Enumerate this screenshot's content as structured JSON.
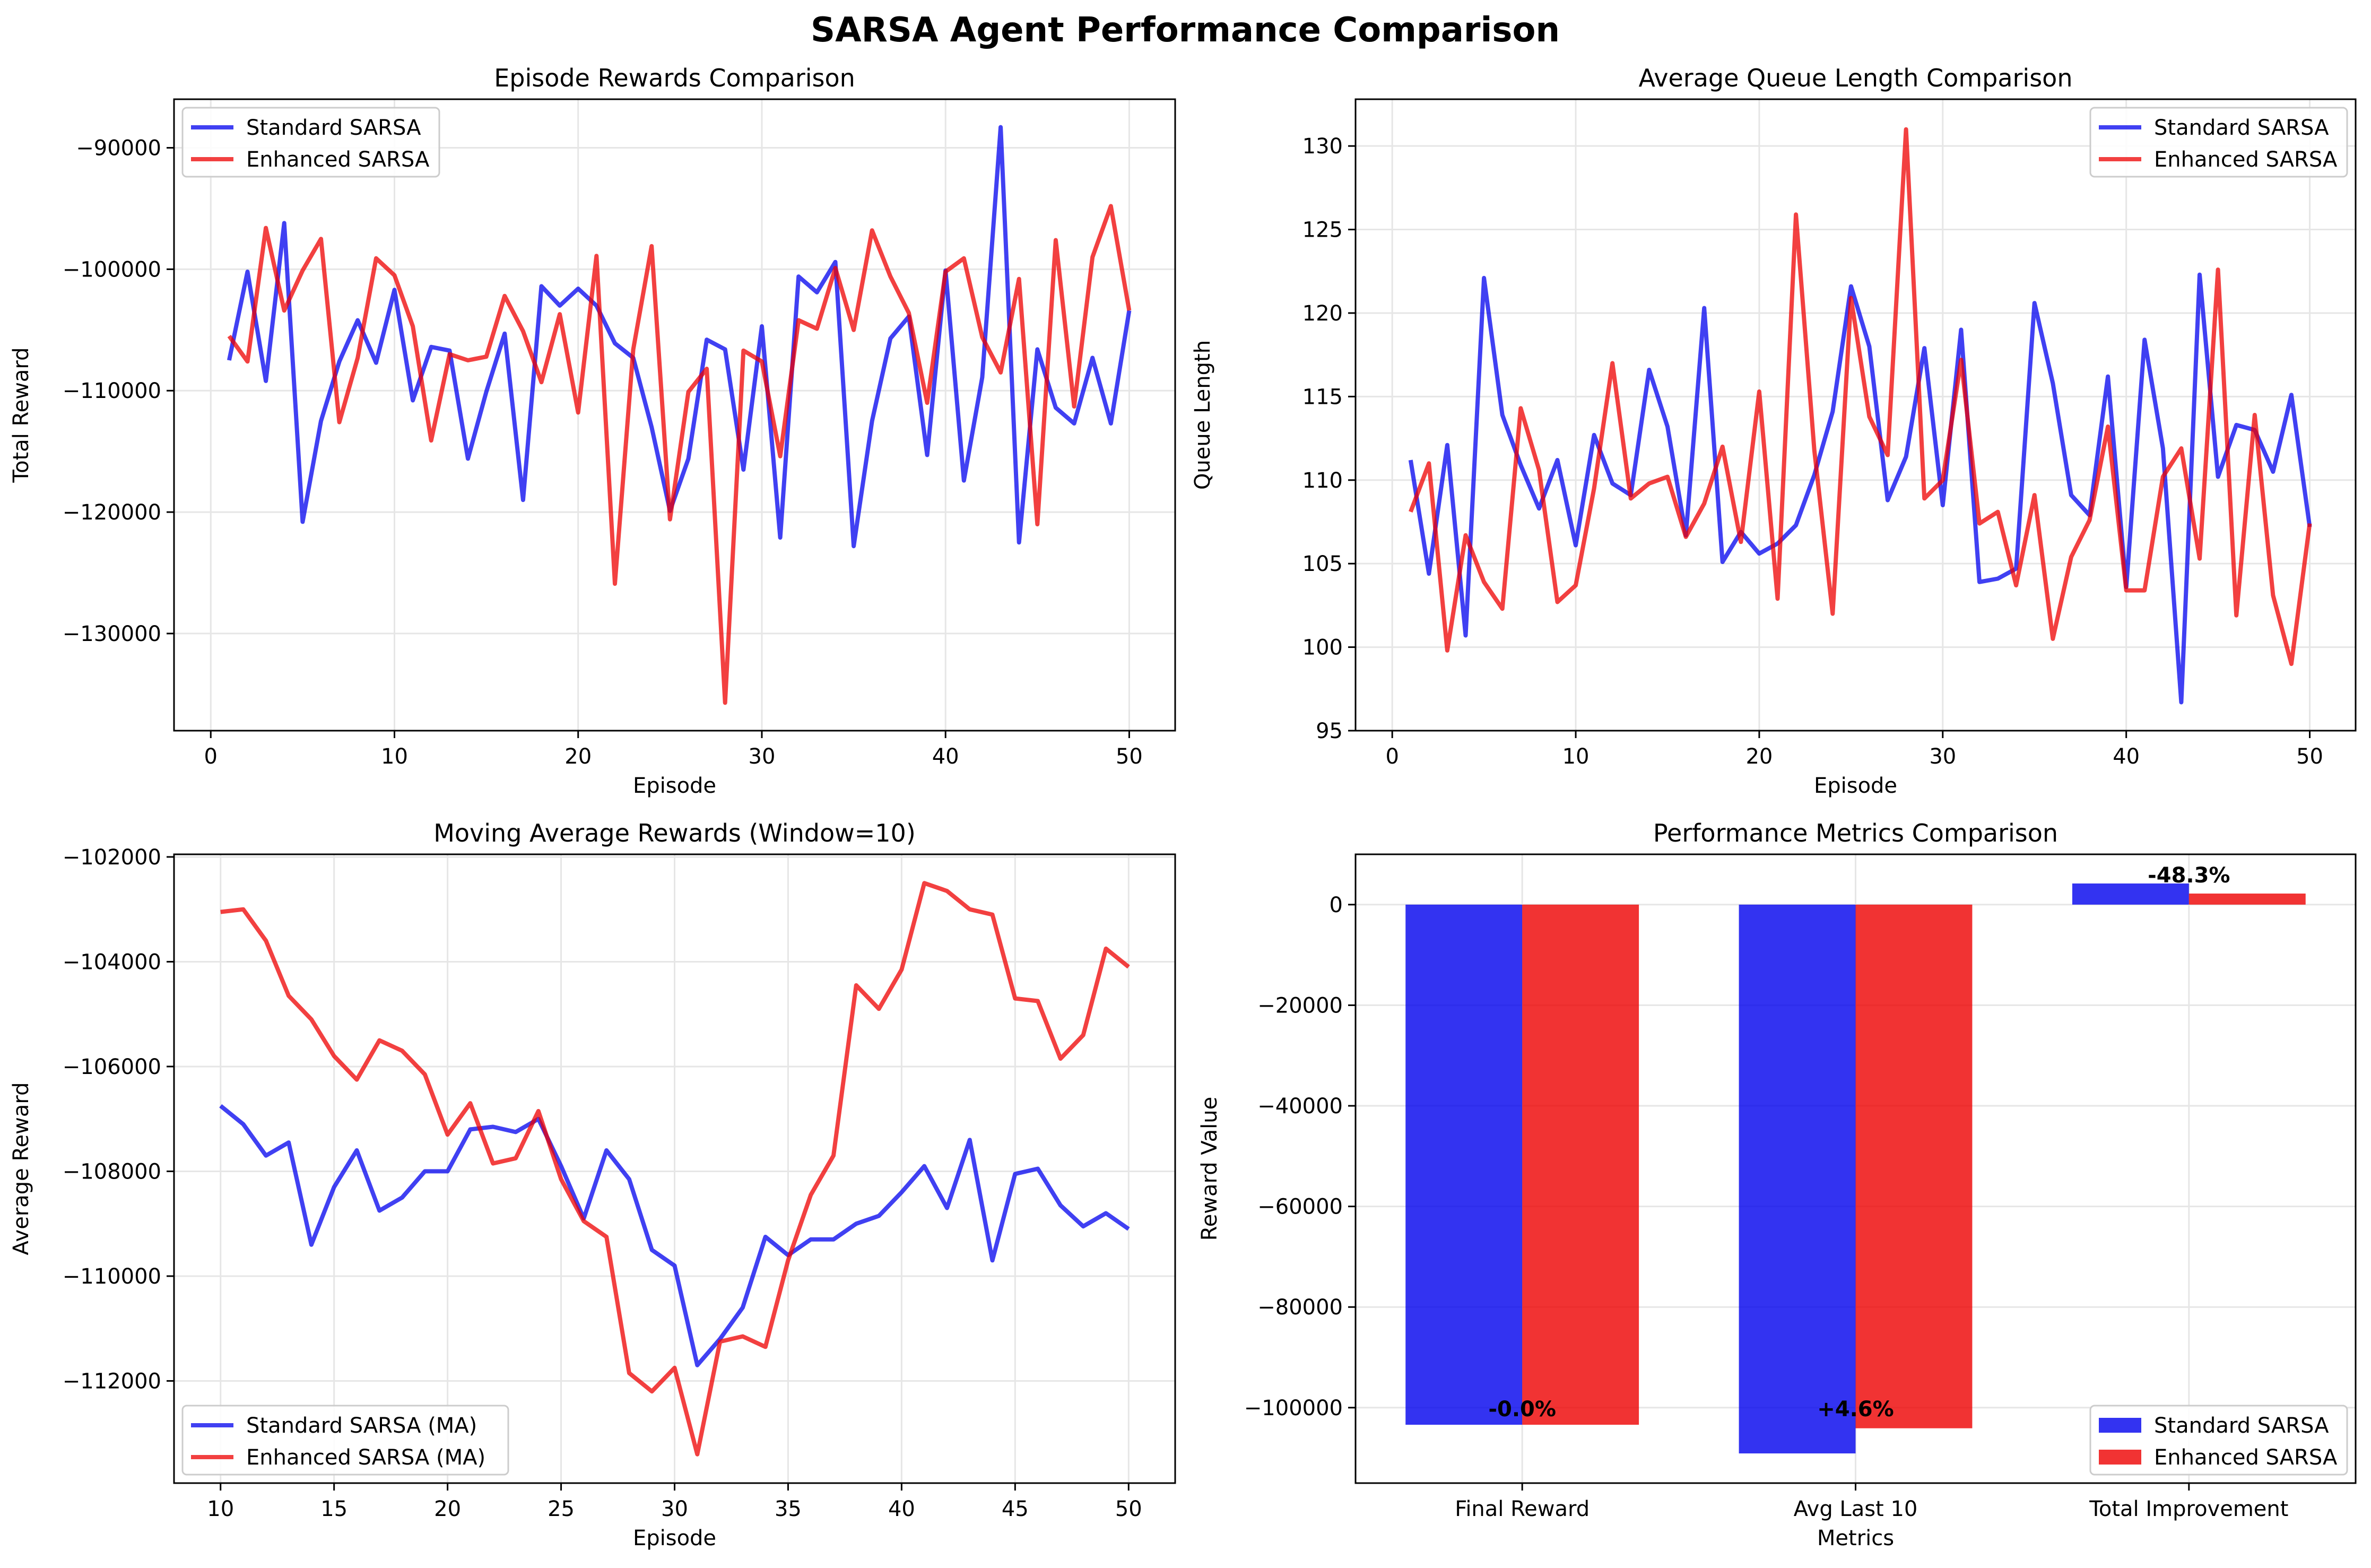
{
  "suptitle": "SARSA Agent Performance Comparison",
  "colors": {
    "standard": "#0000ee",
    "enhanced": "#ee0000",
    "grid": "#e6e6e6"
  },
  "chart_data": [
    {
      "type": "line",
      "title": "Episode Rewards Comparison",
      "xlabel": "Episode",
      "ylabel": "Total Reward",
      "xlim": [
        -2,
        52.5
      ],
      "ylim": [
        -138000,
        -86000
      ],
      "xticks": [
        0,
        10,
        20,
        30,
        40,
        50
      ],
      "yticks": [
        -130000,
        -120000,
        -110000,
        -100000,
        -90000
      ],
      "ytick_labels": [
        "−130000",
        "−120000",
        "−110000",
        "−100000",
        "−90000"
      ],
      "legend": "top-left",
      "x": [
        1,
        2,
        3,
        4,
        5,
        6,
        7,
        8,
        9,
        10,
        11,
        12,
        13,
        14,
        15,
        16,
        17,
        18,
        19,
        20,
        21,
        22,
        23,
        24,
        25,
        26,
        27,
        28,
        29,
        30,
        31,
        32,
        33,
        34,
        35,
        36,
        37,
        38,
        39,
        40,
        41,
        42,
        43,
        44,
        45,
        46,
        47,
        48,
        49,
        50
      ],
      "series": [
        {
          "name": "Standard SARSA",
          "color_key": "standard",
          "values": [
            -107500,
            -100200,
            -109200,
            -96200,
            -120800,
            -112500,
            -107600,
            -104200,
            -107700,
            -101700,
            -110800,
            -106400,
            -106700,
            -115600,
            -110100,
            -105300,
            -119000,
            -101400,
            -103000,
            -101600,
            -103000,
            -106100,
            -107300,
            -113000,
            -119900,
            -115600,
            -105800,
            -106600,
            -116500,
            -104700,
            -122100,
            -100600,
            -101900,
            -99400,
            -122800,
            -112500,
            -105700,
            -103900,
            -115300,
            -100100,
            -117400,
            -108900,
            -88300,
            -122500,
            -106600,
            -111400,
            -112700,
            -107300,
            -112700,
            -103400
          ]
        },
        {
          "name": "Enhanced SARSA",
          "color_key": "enhanced",
          "values": [
            -105500,
            -107600,
            -96600,
            -103400,
            -100100,
            -97500,
            -112600,
            -107300,
            -99100,
            -100500,
            -104700,
            -114100,
            -107000,
            -107500,
            -107200,
            -102200,
            -105100,
            -109300,
            -103700,
            -111800,
            -98900,
            -125900,
            -106600,
            -98100,
            -120600,
            -110100,
            -108200,
            -135700,
            -106700,
            -107600,
            -115400,
            -104200,
            -104900,
            -99900,
            -105000,
            -96800,
            -100600,
            -103600,
            -111000,
            -100200,
            -99100,
            -105600,
            -108500,
            -100800,
            -121000,
            -97600,
            -111300,
            -99000,
            -94800,
            -103400
          ]
        }
      ]
    },
    {
      "type": "line",
      "title": "Average Queue Length Comparison",
      "xlabel": "Episode",
      "ylabel": "Queue Length",
      "xlim": [
        -2,
        52.5
      ],
      "ylim": [
        95,
        132.8
      ],
      "xticks": [
        0,
        10,
        20,
        30,
        40,
        50
      ],
      "yticks": [
        95,
        100,
        105,
        110,
        115,
        120,
        125,
        130
      ],
      "ytick_labels": [
        "95",
        "100",
        "105",
        "110",
        "115",
        "120",
        "125",
        "130"
      ],
      "legend": "top-right",
      "x": [
        1,
        2,
        3,
        4,
        5,
        6,
        7,
        8,
        9,
        10,
        11,
        12,
        13,
        14,
        15,
        16,
        17,
        18,
        19,
        20,
        21,
        22,
        23,
        24,
        25,
        26,
        27,
        28,
        29,
        30,
        31,
        32,
        33,
        34,
        35,
        36,
        37,
        38,
        39,
        40,
        41,
        42,
        43,
        44,
        45,
        46,
        47,
        48,
        49,
        50
      ],
      "series": [
        {
          "name": "Standard SARSA",
          "color_key": "standard",
          "values": [
            111.2,
            104.4,
            112.1,
            100.7,
            122.1,
            113.9,
            110.9,
            108.3,
            111.2,
            106.1,
            112.7,
            109.8,
            109.1,
            116.6,
            113.2,
            106.7,
            120.3,
            105.1,
            106.9,
            105.6,
            106.2,
            107.3,
            110.3,
            114.1,
            121.6,
            118.0,
            108.8,
            111.4,
            117.9,
            108.5,
            119.0,
            103.9,
            104.1,
            104.7,
            120.6,
            115.8,
            109.1,
            107.9,
            116.2,
            103.6,
            118.4,
            111.9,
            96.7,
            122.3,
            110.2,
            113.3,
            113.0,
            110.5,
            115.1,
            107.2
          ]
        },
        {
          "name": "Enhanced SARSA",
          "color_key": "enhanced",
          "values": [
            108.1,
            111.0,
            99.8,
            106.7,
            103.9,
            102.3,
            114.3,
            110.6,
            102.7,
            103.7,
            109.5,
            117.0,
            108.9,
            109.8,
            110.2,
            106.6,
            108.6,
            112.0,
            106.3,
            115.3,
            102.9,
            125.9,
            111.8,
            102.0,
            120.9,
            113.8,
            111.5,
            131.0,
            108.9,
            110.0,
            117.2,
            107.4,
            108.1,
            103.7,
            109.1,
            100.5,
            105.4,
            107.6,
            113.2,
            103.4,
            103.4,
            110.2,
            111.9,
            105.3,
            122.6,
            101.9,
            113.9,
            103.1,
            99.0,
            107.4
          ]
        }
      ]
    },
    {
      "type": "line",
      "title": "Moving Average Rewards (Window=10)",
      "xlabel": "Episode",
      "ylabel": "Average Reward",
      "xlim": [
        7.95,
        52.05
      ],
      "ylim": [
        -113950,
        -101950
      ],
      "xticks": [
        10,
        15,
        20,
        25,
        30,
        35,
        40,
        45,
        50
      ],
      "yticks": [
        -112000,
        -110000,
        -108000,
        -106000,
        -104000,
        -102000
      ],
      "ytick_labels": [
        "−112000",
        "−110000",
        "−108000",
        "−106000",
        "−104000",
        "−102000"
      ],
      "legend": "bottom-left",
      "x": [
        10,
        11,
        12,
        13,
        14,
        15,
        16,
        17,
        18,
        19,
        20,
        21,
        22,
        23,
        24,
        25,
        26,
        27,
        28,
        29,
        30,
        31,
        32,
        33,
        34,
        35,
        36,
        37,
        38,
        39,
        40,
        41,
        42,
        43,
        44,
        45,
        46,
        47,
        48,
        49,
        50
      ],
      "series": [
        {
          "name": "Standard SARSA (MA)",
          "color_key": "standard",
          "values": [
            -106750,
            -107100,
            -107700,
            -107450,
            -109400,
            -108300,
            -107600,
            -108750,
            -108500,
            -108000,
            -108000,
            -107200,
            -107150,
            -107250,
            -107000,
            -107900,
            -108900,
            -107600,
            -108150,
            -109500,
            -109800,
            -111700,
            -111200,
            -110600,
            -109250,
            -109600,
            -109300,
            -109300,
            -109000,
            -108850,
            -108400,
            -107900,
            -108700,
            -107400,
            -109700,
            -108050,
            -107950,
            -108650,
            -109050,
            -108800,
            -109100
          ]
        },
        {
          "name": "Enhanced SARSA (MA)",
          "color_key": "enhanced",
          "values": [
            -103050,
            -103000,
            -103600,
            -104650,
            -105100,
            -105800,
            -106250,
            -105500,
            -105700,
            -106150,
            -107300,
            -106700,
            -107850,
            -107750,
            -106850,
            -108150,
            -108950,
            -109250,
            -111850,
            -112200,
            -111750,
            -113400,
            -111250,
            -111150,
            -111350,
            -109700,
            -108450,
            -107700,
            -104450,
            -104900,
            -104150,
            -102500,
            -102650,
            -103000,
            -103100,
            -104700,
            -104750,
            -105850,
            -105400,
            -103750,
            -104100
          ]
        }
      ]
    },
    {
      "type": "bar",
      "title": "Performance Metrics Comparison",
      "xlabel": "Metrics",
      "ylabel": "Reward Value",
      "ylim": [
        -115000,
        10000
      ],
      "yticks": [
        -100000,
        -80000,
        -60000,
        -40000,
        -20000,
        0
      ],
      "ytick_labels": [
        "−100000",
        "−80000",
        "−60000",
        "−40000",
        "−20000",
        "0"
      ],
      "legend": "bottom-right",
      "categories": [
        "Final Reward",
        "Avg Last 10",
        "Total Improvement"
      ],
      "series": [
        {
          "name": "Standard SARSA",
          "color_key": "standard",
          "values": [
            -103400,
            -109100,
            4200
          ]
        },
        {
          "name": "Enhanced SARSA",
          "color_key": "enhanced",
          "values": [
            -103400,
            -104100,
            2200
          ]
        }
      ],
      "annotations": [
        "-0.0%",
        "+4.6%",
        "-48.3%"
      ]
    }
  ]
}
